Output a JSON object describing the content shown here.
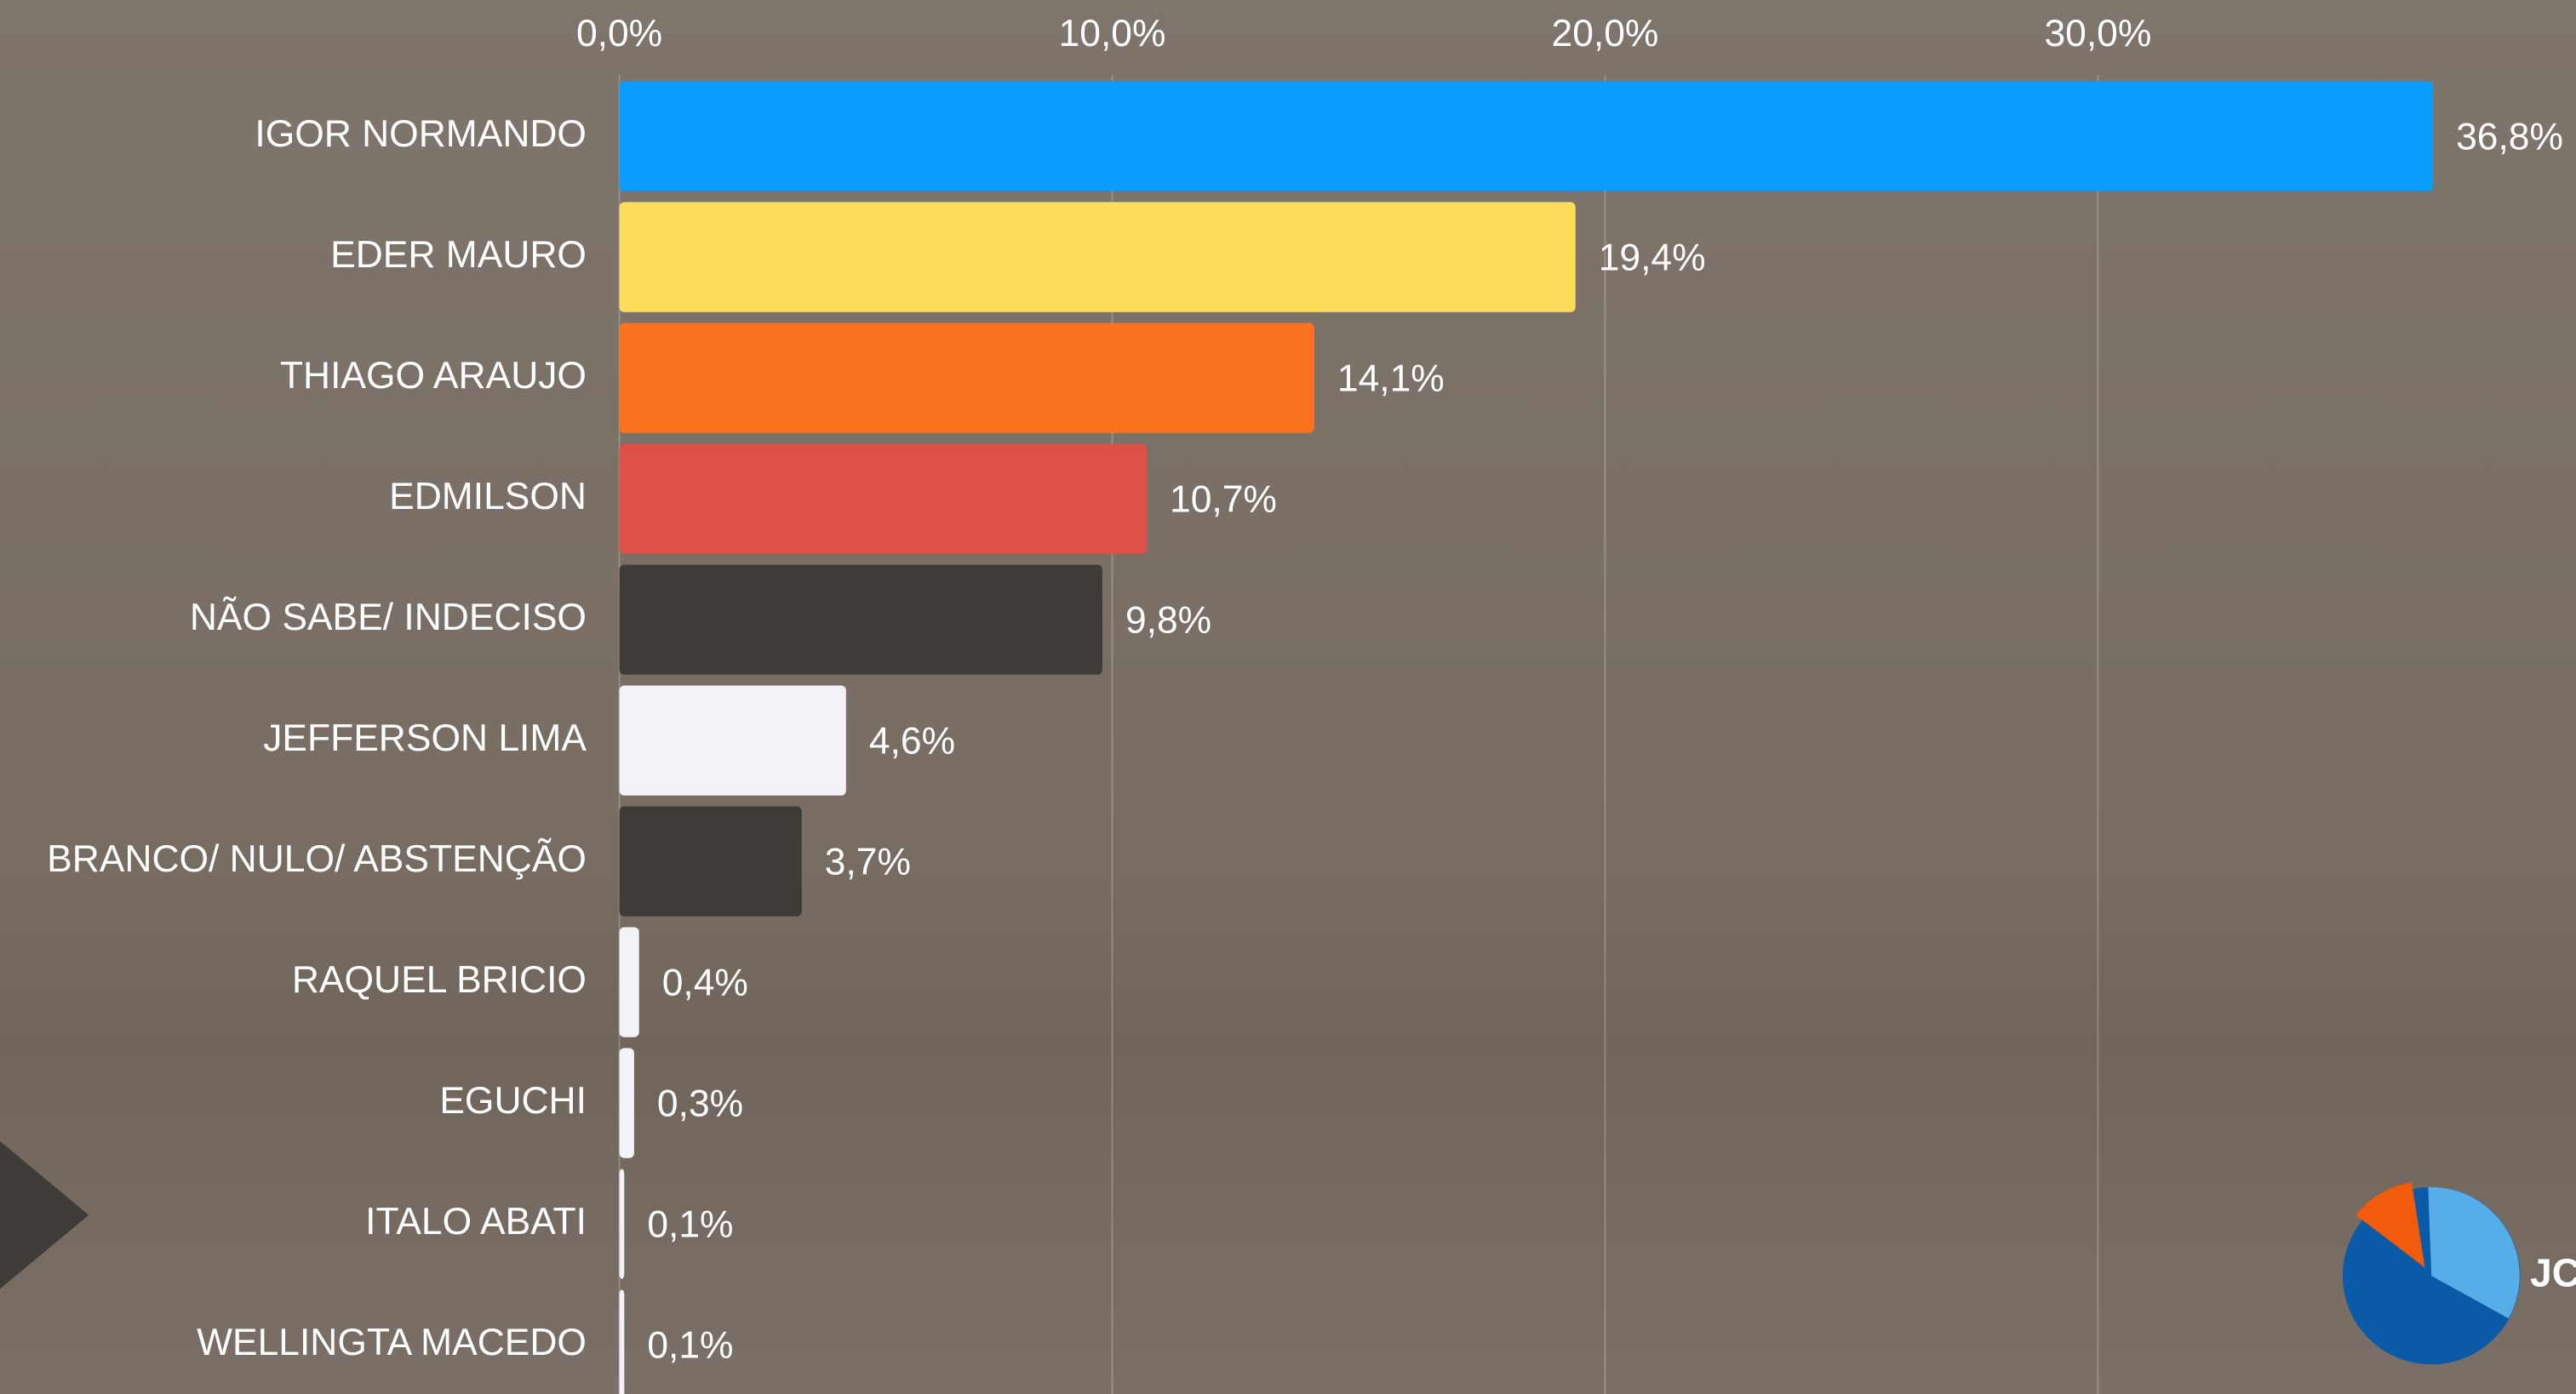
{
  "chart_data": {
    "type": "bar",
    "orientation": "horizontal",
    "categories": [
      "IGOR NORMANDO",
      "EDER MAURO",
      "THIAGO ARAUJO",
      "EDMILSON",
      "NÃO SABE/ INDECISO",
      "JEFFERSON LIMA",
      "BRANCO/ NULO/ ABSTENÇÃO",
      "RAQUEL BRICIO",
      "EGUCHI",
      "ITALO ABATI",
      "WELLINGTA MACEDO"
    ],
    "values": [
      36.8,
      19.4,
      14.1,
      10.7,
      9.8,
      4.6,
      3.7,
      0.4,
      0.3,
      0.1,
      0.1
    ],
    "value_labels": [
      "36,8%",
      "19,4%",
      "14,1%",
      "10,7%",
      "9,8%",
      "4,6%",
      "3,7%",
      "0,4%",
      "0,3%",
      "0,1%",
      "0,1%"
    ],
    "colors": [
      "#0a9cff",
      "#ffdc5c",
      "#fb731e",
      "#de5046",
      "#3f3b37",
      "#f2f2f8",
      "#3f3b37",
      "#f2f2f8",
      "#f2f2f8",
      "#f2f2f8",
      "#f2f2f8"
    ],
    "xlim": [
      0,
      39.7
    ],
    "xticks": [
      {
        "value": 0,
        "label": "0,0%"
      },
      {
        "value": 10,
        "label": "10,0%"
      },
      {
        "value": 20,
        "label": "20,0%"
      },
      {
        "value": 30,
        "label": "30,0%"
      }
    ],
    "grid": true
  },
  "logo": "JC"
}
